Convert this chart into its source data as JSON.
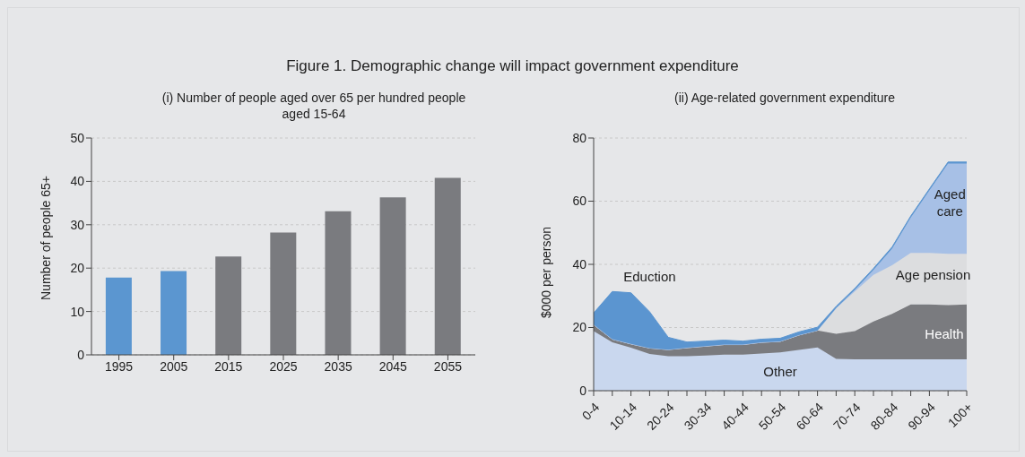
{
  "chart_data": [
    {
      "type": "bar",
      "title": "(i) Number of people aged over 65 per hundred people aged 15-64",
      "annotations": [
        "Figure 1. Demographic change will impact government expenditure"
      ],
      "ylabel": "Number of people 65+",
      "categories": [
        "1995",
        "2005",
        "2015",
        "2025",
        "2035",
        "2045",
        "2055"
      ],
      "values": [
        17.8,
        19.3,
        22.7,
        28.2,
        33.1,
        36.3,
        40.8
      ],
      "colors": [
        "#5b96d0",
        "#5b96d0",
        "#7a7b7f",
        "#7a7b7f",
        "#7a7b7f",
        "#7a7b7f",
        "#7a7b7f"
      ],
      "ylim": [
        0,
        50
      ],
      "yticks": [
        0,
        10,
        20,
        30,
        40,
        50
      ],
      "grid": "y",
      "legend": false
    },
    {
      "type": "area",
      "stacked": true,
      "title": "(ii) Age-related government expenditure",
      "ylabel": "$000 per person",
      "categories": [
        "0-4",
        null,
        "10-14",
        null,
        "20-24",
        null,
        "30-34",
        null,
        "40-44",
        null,
        "50-54",
        null,
        "60-64",
        null,
        "70-74",
        null,
        "80-84",
        null,
        "90-94",
        null,
        "100+"
      ],
      "series": [
        {
          "name": "Other",
          "color": "#c9d7ee",
          "values": [
            18.9,
            15.3,
            13.6,
            11.6,
            10.9,
            10.9,
            11.1,
            11.4,
            11.4,
            11.8,
            12.1,
            12.9,
            13.7,
            10.1,
            9.9,
            9.9,
            9.9,
            9.9,
            9.9,
            9.9,
            9.9
          ]
        },
        {
          "name": "Health",
          "color": "#7a7b7f",
          "values": [
            2.0,
            1.0,
            1.2,
            1.9,
            2.1,
            2.7,
            3.0,
            3.2,
            3.2,
            3.5,
            3.5,
            4.7,
            5.4,
            7.9,
            9.0,
            12.0,
            14.4,
            17.4,
            17.4,
            17.2,
            17.4
          ]
        },
        {
          "name": "Age pension",
          "color": "#dcdddf",
          "values": [
            0,
            0,
            0,
            0,
            0,
            0,
            0,
            0,
            0,
            0,
            0,
            0,
            0,
            8.2,
            12.5,
            14.8,
            15.4,
            16.3,
            16.3,
            16.2,
            16.0
          ]
        },
        {
          "name": "Aged care",
          "color": "#a7c0e6",
          "values": [
            0,
            0,
            0,
            0,
            0,
            0,
            0,
            0,
            0,
            0,
            0,
            0,
            0,
            0,
            0.5,
            1.5,
            5.3,
            11.2,
            19.8,
            28.6,
            28.6
          ]
        },
        {
          "name": "Eduction",
          "color": "#5b95d0",
          "values": [
            3.7,
            15.1,
            16.2,
            11.5,
            3.9,
            1.8,
            1.6,
            1.4,
            1.1,
            1.0,
            1.0,
            1.0,
            1.0,
            0.5,
            0.5,
            0.5,
            0.5,
            0.5,
            0.5,
            0.5,
            0.5
          ]
        }
      ],
      "ylim": [
        0,
        80
      ],
      "yticks": [
        0,
        20,
        40,
        60,
        80
      ],
      "grid": "y",
      "legend": false
    }
  ]
}
